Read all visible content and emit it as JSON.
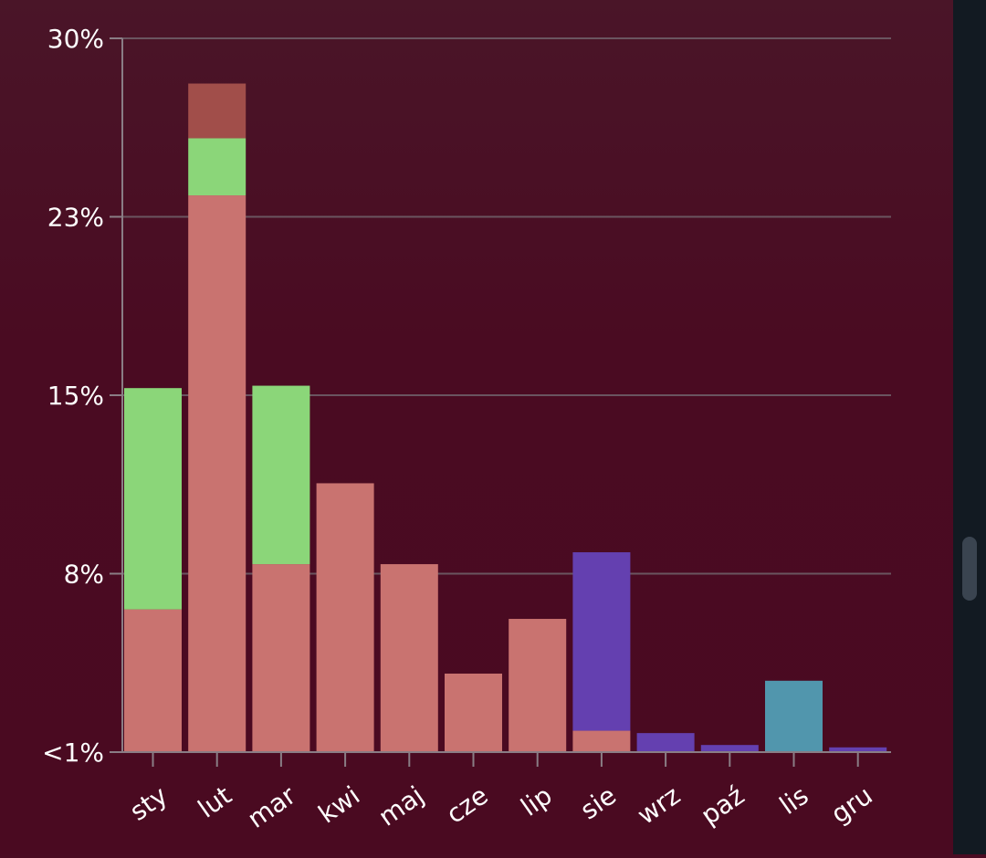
{
  "chart_data": {
    "type": "bar",
    "stacked": true,
    "title": "",
    "xlabel": "",
    "ylabel": "",
    "categories": [
      "sty",
      "lut",
      "mar",
      "kwi",
      "maj",
      "cze",
      "lip",
      "sie",
      "wrz",
      "paź",
      "lis",
      "gru"
    ],
    "ylim": [
      0,
      30
    ],
    "y_ticks": [
      {
        "value": 0,
        "label": "<1%"
      },
      {
        "value": 7.5,
        "label": "8%"
      },
      {
        "value": 15,
        "label": "15%"
      },
      {
        "value": 22.5,
        "label": "23%"
      },
      {
        "value": 30,
        "label": "30%"
      }
    ],
    "grid": true,
    "legend": "none",
    "series": [
      {
        "color": "#c97370",
        "values": [
          6.0,
          23.4,
          7.9,
          11.3,
          7.9,
          3.3,
          5.6,
          0.9,
          0,
          0,
          0,
          0
        ]
      },
      {
        "color": "#8bd679",
        "values": [
          9.3,
          2.4,
          7.5,
          0,
          0,
          0,
          0,
          0,
          0,
          0,
          0,
          0
        ]
      },
      {
        "color": "#a14e4a",
        "values": [
          0,
          2.3,
          0,
          0,
          0,
          0,
          0,
          0,
          0,
          0,
          0,
          0
        ]
      },
      {
        "color": "#6440b0",
        "values": [
          0,
          0,
          0,
          0,
          0,
          0,
          0,
          7.5,
          0.8,
          0.3,
          0,
          0.2
        ]
      },
      {
        "color": "#5196ad",
        "values": [
          0,
          0,
          0,
          0,
          0,
          0,
          0,
          0,
          0,
          0,
          3.0,
          0
        ]
      }
    ]
  },
  "colors": {
    "background": "#4a0b22",
    "grid": "#6a5560",
    "axis": "#8a7d85",
    "text": "#ffffff"
  }
}
